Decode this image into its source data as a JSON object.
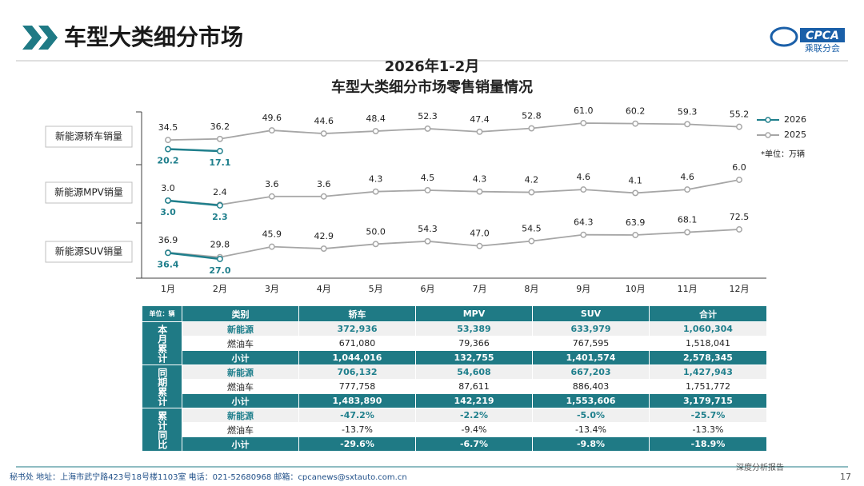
{
  "header": {
    "title": "车型大类细分市场",
    "logo": "CPCA",
    "logo_sub": "乘联分会"
  },
  "chart_header": {
    "title": "2026年1-2月",
    "subtitle": "车型大类细分市场零售销量情况",
    "unit_note": "*单位：万辆"
  },
  "chart_data": [
    {
      "type": "line",
      "title": "新能源轿车销量",
      "categories": [
        "1月",
        "2月",
        "3月",
        "4月",
        "5月",
        "6月",
        "7月",
        "8月",
        "9月",
        "10月",
        "11月",
        "12月"
      ],
      "series": [
        {
          "name": "2026",
          "color": "#1f7f8c",
          "values": [
            20.2,
            17.1,
            null,
            null,
            null,
            null,
            null,
            null,
            null,
            null,
            null,
            null
          ],
          "value_labels": [
            "20.2",
            "17.1",
            null,
            null,
            null,
            null,
            null,
            null,
            null,
            null,
            null,
            null
          ]
        },
        {
          "name": "2025",
          "color": "#a6a6a6",
          "values": [
            34.5,
            36.2,
            49.6,
            44.6,
            48.4,
            52.3,
            47.4,
            52.8,
            61.0,
            60.2,
            59.3,
            55.2
          ],
          "value_labels": [
            "34.5",
            "36.2",
            "49.6",
            "44.6",
            "48.4",
            "52.3",
            "47.4",
            "52.8",
            "61.0",
            "60.2",
            "59.3",
            "55.2"
          ]
        }
      ]
    },
    {
      "type": "line",
      "title": "新能源MPV销量",
      "categories": [
        "1月",
        "2月",
        "3月",
        "4月",
        "5月",
        "6月",
        "7月",
        "8月",
        "9月",
        "10月",
        "11月",
        "12月"
      ],
      "series": [
        {
          "name": "2026",
          "color": "#1f7f8c",
          "values": [
            3.0,
            2.3,
            null,
            null,
            null,
            null,
            null,
            null,
            null,
            null,
            null,
            null
          ],
          "value_labels": [
            "3.0",
            "2.3",
            null,
            null,
            null,
            null,
            null,
            null,
            null,
            null,
            null,
            null
          ]
        },
        {
          "name": "2025",
          "color": "#a6a6a6",
          "values": [
            3.0,
            2.4,
            3.6,
            3.6,
            4.3,
            4.5,
            4.3,
            4.2,
            4.6,
            4.1,
            4.6,
            6.0
          ],
          "value_labels": [
            "3.0",
            "2.4",
            "3.6",
            "3.6",
            "4.3",
            "4.5",
            "4.3",
            "4.2",
            "4.6",
            "4.1",
            "4.6",
            "6.0"
          ]
        }
      ]
    },
    {
      "type": "line",
      "title": "新能源SUV销量",
      "categories": [
        "1月",
        "2月",
        "3月",
        "4月",
        "5月",
        "6月",
        "7月",
        "8月",
        "9月",
        "10月",
        "11月",
        "12月"
      ],
      "series": [
        {
          "name": "2026",
          "color": "#1f7f8c",
          "values": [
            36.4,
            27.0,
            null,
            null,
            null,
            null,
            null,
            null,
            null,
            null,
            null,
            null
          ],
          "value_labels": [
            "36.4",
            "27.0",
            null,
            null,
            null,
            null,
            null,
            null,
            null,
            null,
            null,
            null
          ]
        },
        {
          "name": "2025",
          "color": "#a6a6a6",
          "values": [
            36.9,
            29.8,
            45.9,
            42.9,
            50.0,
            54.3,
            47.0,
            54.5,
            64.3,
            63.9,
            68.1,
            72.5
          ],
          "value_labels": [
            "36.9",
            "29.8",
            "45.9",
            "42.9",
            "50.0",
            "54.3",
            "47.0",
            "54.5",
            "64.3",
            "63.9",
            "68.1",
            "72.5"
          ]
        }
      ]
    }
  ],
  "table": {
    "unit": "单位：辆",
    "columns": [
      "类别",
      "轿车",
      "MPV",
      "SUV",
      "合计"
    ],
    "groups": [
      {
        "name": "本月累计",
        "rows": [
          [
            "新能源",
            "372,936",
            "53,389",
            "633,979",
            "1,060,304"
          ],
          [
            "燃油车",
            "671,080",
            "79,366",
            "767,595",
            "1,518,041"
          ],
          [
            "小计",
            "1,044,016",
            "132,755",
            "1,401,574",
            "2,578,345"
          ]
        ]
      },
      {
        "name": "同期累计",
        "rows": [
          [
            "新能源",
            "706,132",
            "54,608",
            "667,203",
            "1,427,943"
          ],
          [
            "燃油车",
            "777,758",
            "87,611",
            "886,403",
            "1,751,772"
          ],
          [
            "小计",
            "1,483,890",
            "142,219",
            "1,553,606",
            "3,179,715"
          ]
        ]
      },
      {
        "name": "累计同比",
        "rows": [
          [
            "新能源",
            "-47.2%",
            "-2.2%",
            "-5.0%",
            "-25.7%"
          ],
          [
            "燃油车",
            "-13.7%",
            "-9.4%",
            "-13.4%",
            "-13.3%"
          ],
          [
            "小计",
            "-29.6%",
            "-6.7%",
            "-9.8%",
            "-18.9%"
          ]
        ]
      }
    ]
  },
  "footer": {
    "contact": "秘书处   地址：上海市武宁路423号18号楼1103室   电话：021-52680968   邮箱：cpcanews@sxtauto.com.cn",
    "report": "深度分析报告",
    "page": "17"
  }
}
